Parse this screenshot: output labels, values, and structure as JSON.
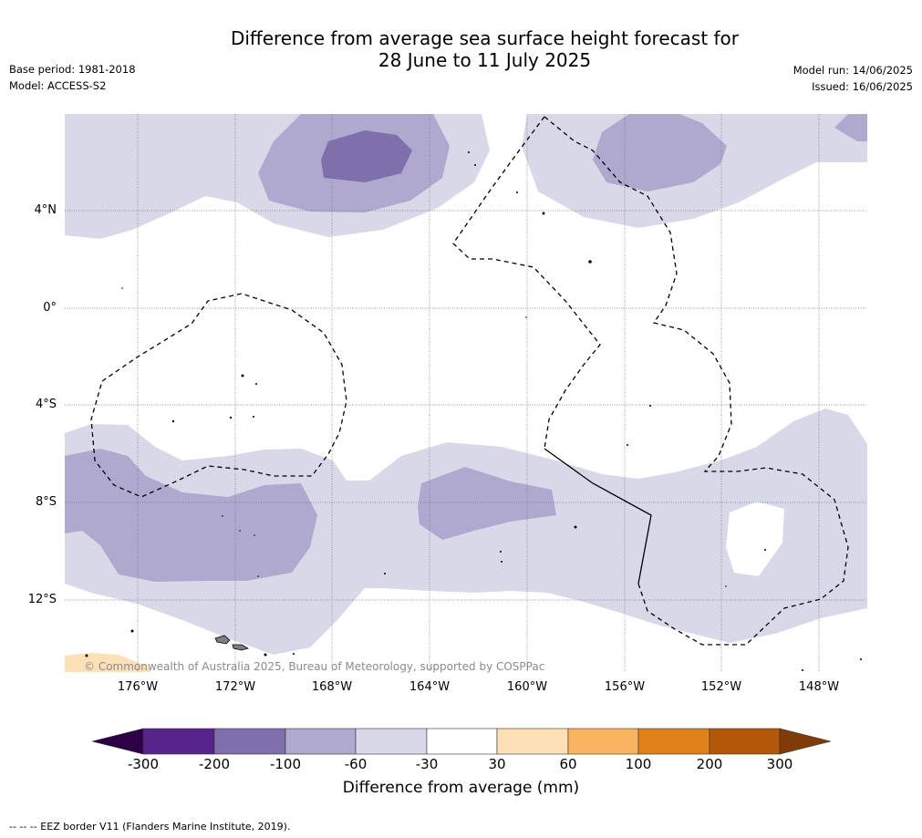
{
  "title_line1": "Difference from average sea surface height forecast for",
  "title_line2": "28 June to 11 July 2025",
  "base_period": "Base period: 1981-2018",
  "model": "Model: ACCESS-S2",
  "model_run": "Model run: 14/06/2025",
  "issued": "Issued: 16/06/2025",
  "lat_labels": [
    "4°N",
    "0°",
    "4°S",
    "8°S",
    "12°S"
  ],
  "lon_labels": [
    "176°W",
    "172°W",
    "168°W",
    "164°W",
    "160°W",
    "156°W",
    "152°W",
    "148°W"
  ],
  "copyright": "© Commonwealth of Australia 2025, Bureau of Meteorology, supported by COSPPac",
  "colorbar": {
    "ticks": [
      "-300",
      "-200",
      "-100",
      "-60",
      "-30",
      "30",
      "60",
      "100",
      "200",
      "300"
    ],
    "colors": [
      "#56248a",
      "#7f6fab",
      "#afa8cf",
      "#d8d8e9",
      "#ffffff",
      "#fde0b6",
      "#f8b45e",
      "#e0811a",
      "#b25808"
    ],
    "under_color": "#2d0045",
    "over_color": "#7f3b08",
    "label": "Difference from average (mm)"
  },
  "footer": "--  --  -- EEZ border V11 (Flanders Marine Institute, 2019)."
}
